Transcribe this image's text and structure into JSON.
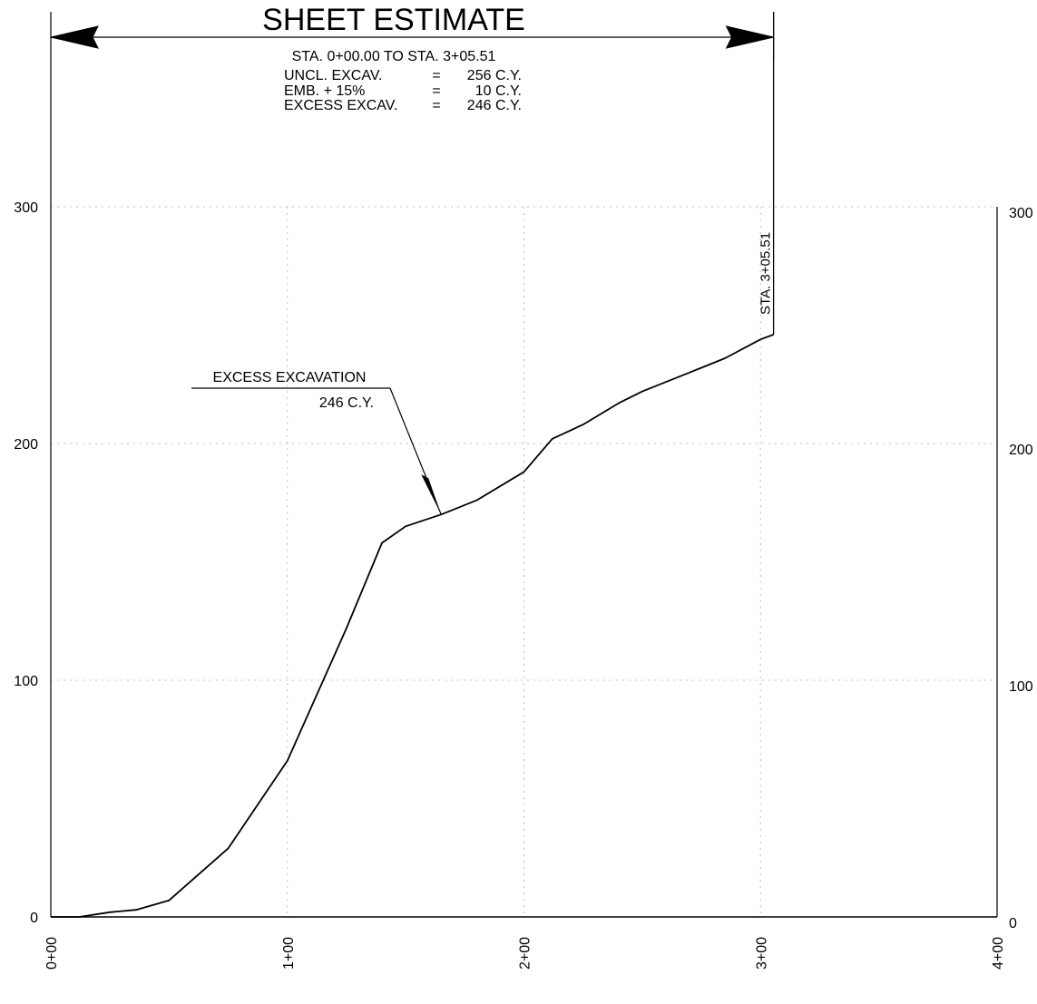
{
  "header": {
    "title": "SHEET ESTIMATE",
    "station_range": "STA. 0+00.00 TO STA. 3+05.51",
    "rows": [
      {
        "label": "UNCL. EXCAV.",
        "eq": "=",
        "value": "256 C.Y."
      },
      {
        "label": "EMB. + 15%",
        "eq": "=",
        "value": "10 C.Y."
      },
      {
        "label": "EXCESS EXCAV.",
        "eq": "=",
        "value": "246 C.Y."
      }
    ]
  },
  "annotations": {
    "end_station": "STA. 3+05.51",
    "callout_line1": "EXCESS EXCAVATION",
    "callout_line2": "246 C.Y."
  },
  "chart_data": {
    "type": "line",
    "title": "SHEET ESTIMATE",
    "xlabel": "",
    "ylabel": "",
    "xlim": [
      0,
      400
    ],
    "ylim": [
      0,
      300
    ],
    "x_ticks": [
      0,
      100,
      200,
      300,
      400
    ],
    "x_tick_labels": [
      "0+00",
      "1+00",
      "2+00",
      "3+00",
      "4+00"
    ],
    "y_ticks": [
      0,
      100,
      200,
      300
    ],
    "y_tick_labels": [
      "0",
      "100",
      "200",
      "300"
    ],
    "grid": true,
    "series": [
      {
        "x": [
          0,
          12,
          25,
          36,
          50,
          75,
          100,
          125,
          140,
          150,
          165,
          180,
          200,
          212,
          225,
          240,
          250,
          275,
          285,
          300,
          305.51
        ],
        "y": [
          0,
          0,
          2,
          3,
          7,
          29,
          66,
          122,
          158,
          165,
          170,
          176,
          188,
          202,
          208,
          217,
          222,
          232,
          236,
          244,
          246
        ]
      }
    ]
  }
}
